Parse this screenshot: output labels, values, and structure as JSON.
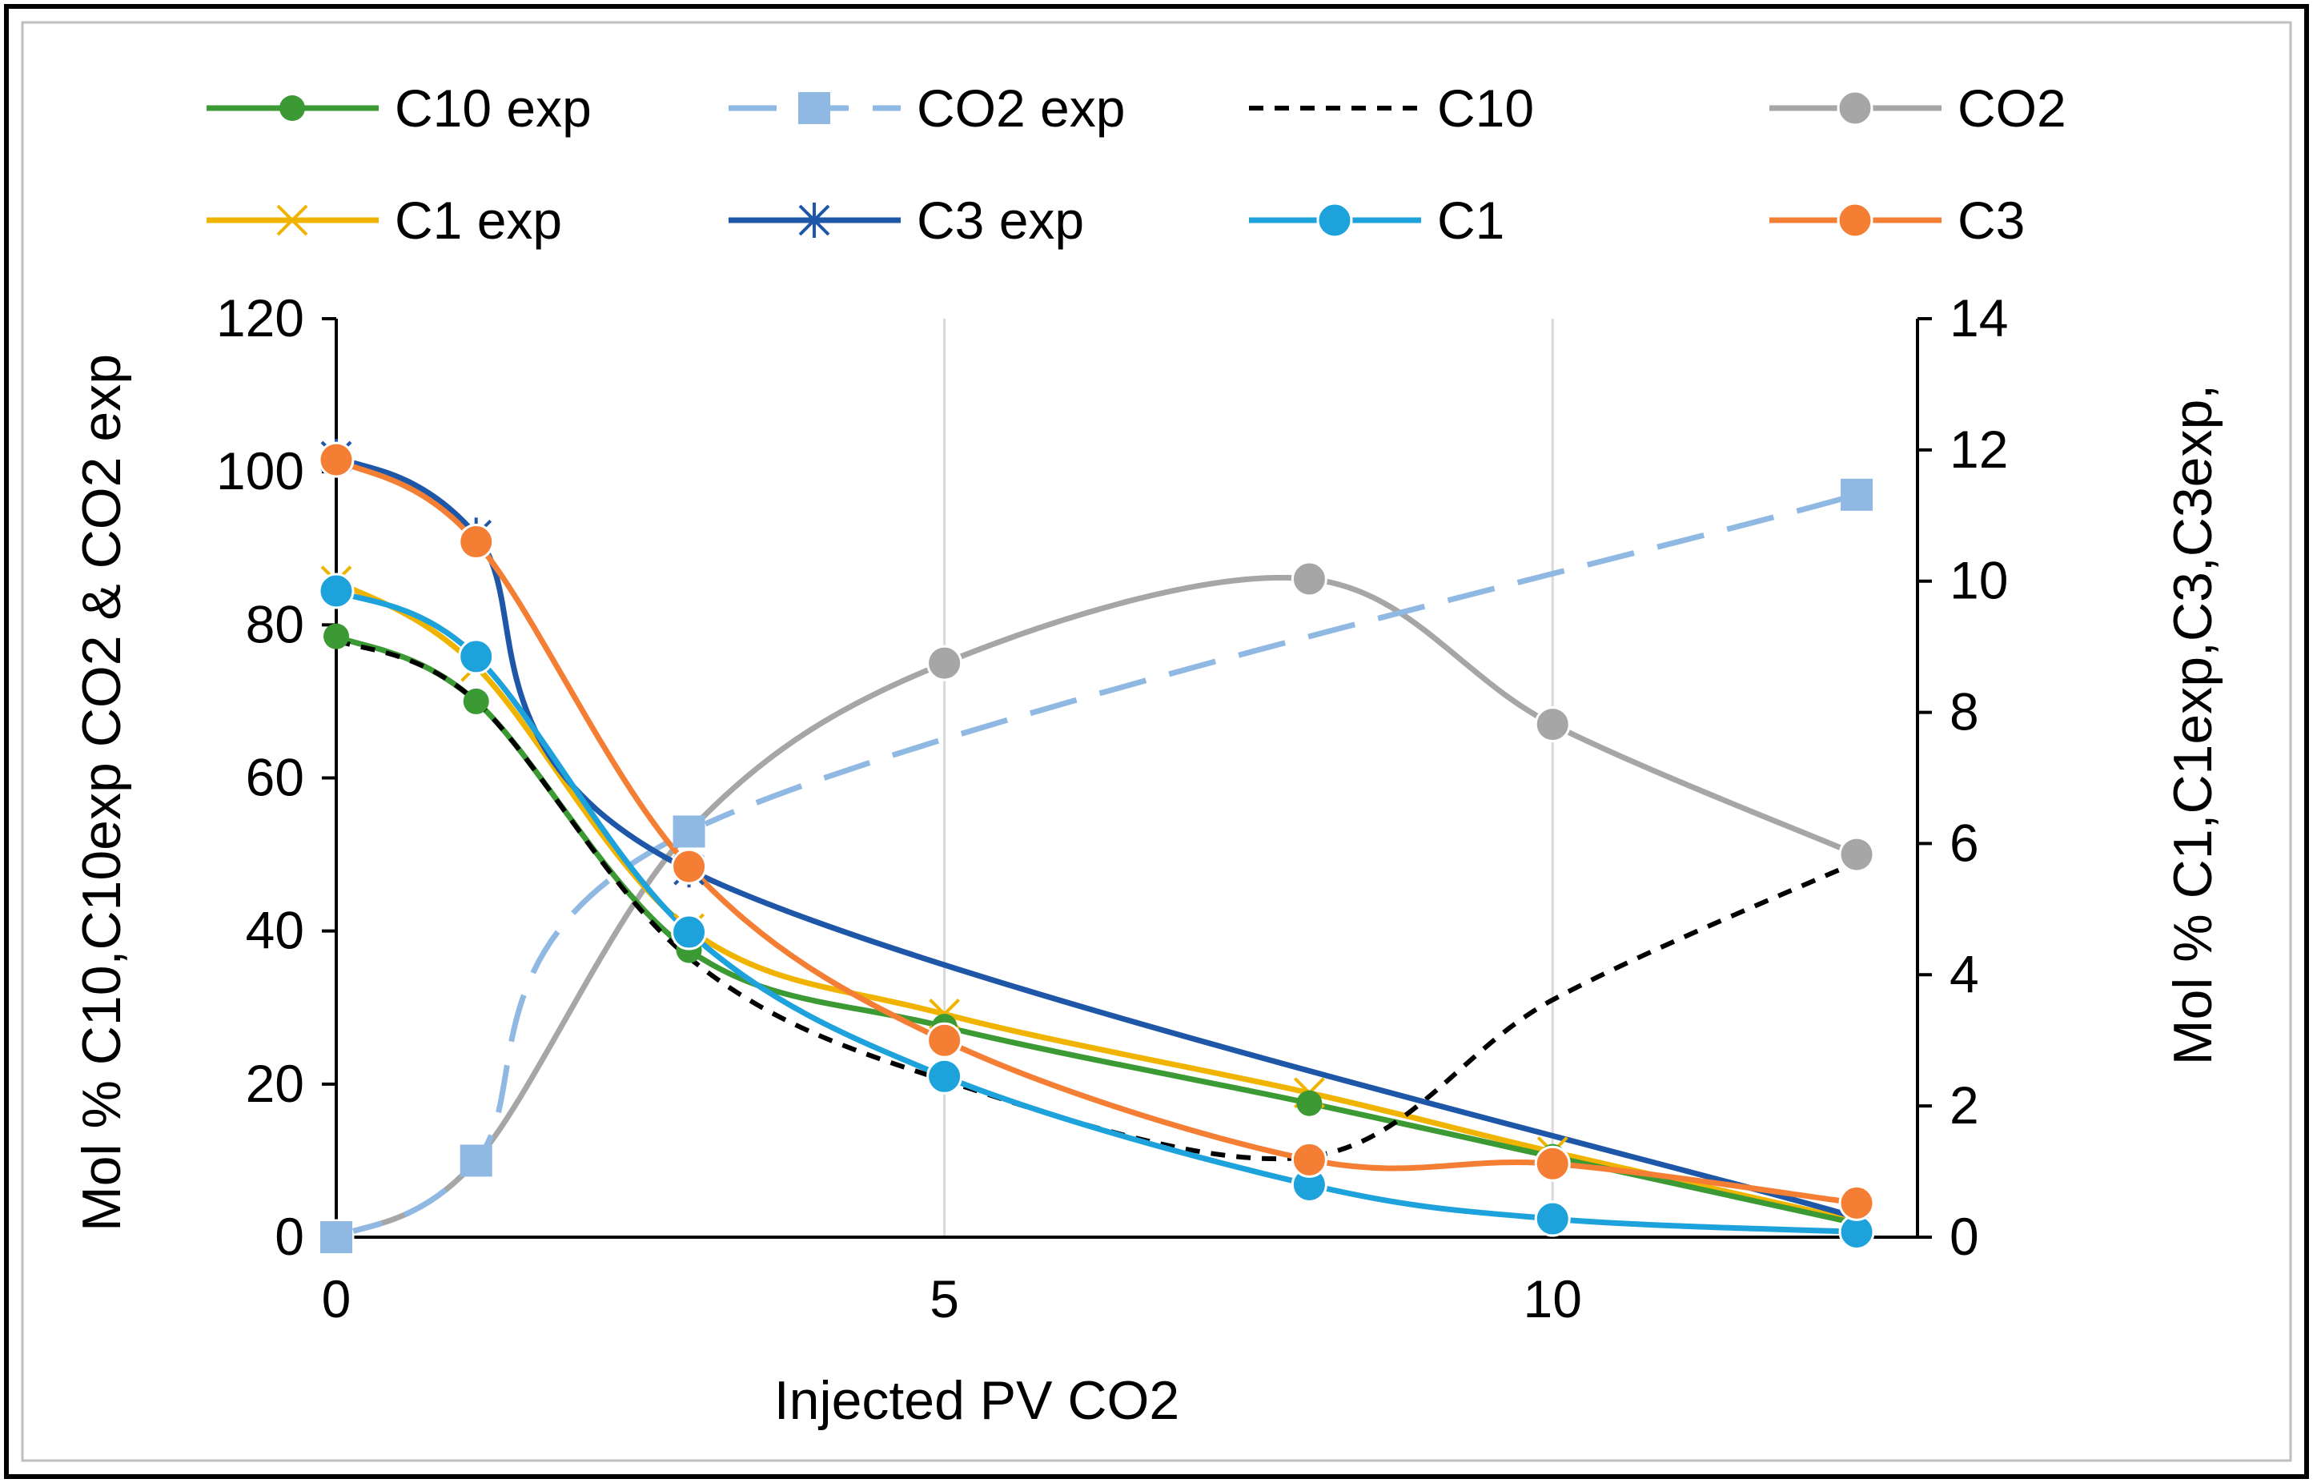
{
  "chart_data": {
    "type": "line",
    "title": "",
    "xlabel": "Injected  PV CO2",
    "ylabel_left": "Mol % C10,C10exp CO2 & CO2 exp",
    "ylabel_right": "Mol % C1,C1exp,C3,C3exp,",
    "xlim": [
      0,
      13
    ],
    "ylim_left": [
      0,
      120
    ],
    "ylim_right": [
      0,
      14
    ],
    "x_ticks": [
      0,
      5,
      10
    ],
    "x_tick_labels": [
      "0",
      "5",
      "10"
    ],
    "y_left_ticks": [
      0,
      20,
      40,
      60,
      80,
      100,
      120
    ],
    "y_left_tick_labels": [
      "0",
      "20",
      "40",
      "60",
      "80",
      "100",
      "120"
    ],
    "y_right_ticks": [
      0,
      2,
      4,
      6,
      8,
      10,
      12,
      14
    ],
    "y_right_tick_labels": [
      "0",
      "2",
      "4",
      "6",
      "8",
      "10",
      "12",
      "14"
    ],
    "grid": "vertical",
    "legend_position": "top",
    "series": [
      {
        "name": "C10 exp",
        "axis": "left",
        "color": "#3c9a34",
        "style": "solid",
        "marker": "circle-small",
        "x": [
          0,
          1.15,
          2.9,
          5,
          8,
          10,
          12.5
        ],
        "y": [
          78.5,
          70,
          37.5,
          27.5,
          17.5,
          10.5,
          1.8
        ]
      },
      {
        "name": "CO2 exp",
        "axis": "left",
        "color": "#8fb9e3",
        "style": "longdash",
        "marker": "square",
        "x": [
          0,
          1.15,
          2.9,
          12.5
        ],
        "y": [
          0,
          10,
          53,
          97
        ]
      },
      {
        "name": "C10",
        "axis": "left",
        "color": "#000000",
        "style": "shortdash",
        "marker": "none",
        "x": [
          0,
          1.15,
          2.9,
          5,
          8,
          10,
          12.5
        ],
        "y": [
          78,
          70,
          36.5,
          20.5,
          10.5,
          31,
          49
        ]
      },
      {
        "name": "CO2",
        "axis": "left",
        "color": "#a6a6a6",
        "style": "solid",
        "marker": "circle",
        "x": [
          0,
          1.15,
          2.9,
          5,
          8,
          10,
          12.5
        ],
        "y": [
          0,
          10,
          53,
          75,
          86,
          67,
          50
        ]
      },
      {
        "name": "C1 exp",
        "axis": "right",
        "color": "#f0b400",
        "style": "solid",
        "marker": "x",
        "x": [
          0,
          1.15,
          2.9,
          5,
          8,
          10,
          12.5
        ],
        "y": [
          10,
          8.7,
          4.7,
          3.4,
          2.2,
          1.3,
          0.25
        ]
      },
      {
        "name": "C3 exp",
        "axis": "right",
        "color": "#1f57a8",
        "style": "solid",
        "marker": "star",
        "x": [
          0,
          1.15,
          2.9,
          12.5
        ],
        "y": [
          11.9,
          10.7,
          5.6,
          0.3
        ]
      },
      {
        "name": "C1",
        "axis": "right",
        "color": "#1da2dc",
        "style": "solid",
        "marker": "circle",
        "x": [
          0,
          1.15,
          2.9,
          5,
          8,
          10,
          12.5
        ],
        "y": [
          9.85,
          8.85,
          4.65,
          2.45,
          0.8,
          0.28,
          0.08
        ]
      },
      {
        "name": "C3",
        "axis": "right",
        "color": "#f47f34",
        "style": "solid",
        "marker": "circle",
        "x": [
          0,
          1.15,
          2.9,
          5,
          8,
          10,
          12.5
        ],
        "y": [
          11.85,
          10.6,
          5.65,
          3.0,
          1.18,
          1.12,
          0.52
        ]
      }
    ]
  }
}
